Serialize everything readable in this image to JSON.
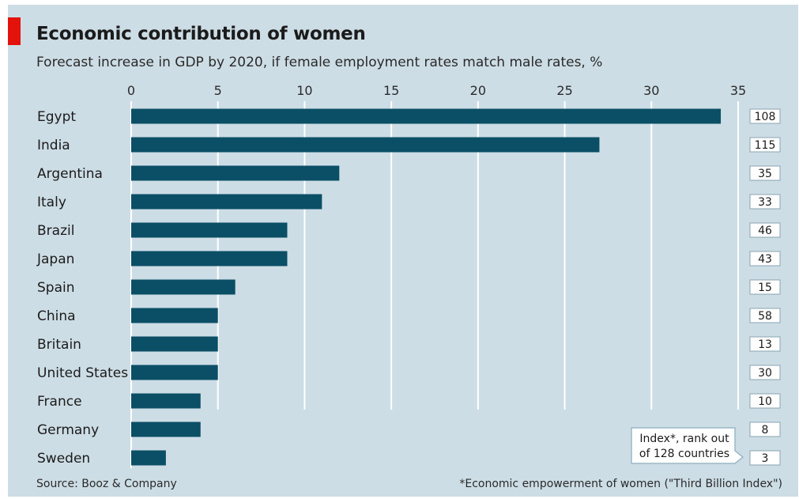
{
  "title": "Economic contribution of women",
  "subtitle": "Forecast increase in GDP by 2020, if female employment rates match male rates, %",
  "source": "Source: Booz & Company",
  "footnote": "*Economic empowerment of women (\"Third Billion Index\")",
  "rank_callout": [
    "Index*, rank out",
    "of 128 countries"
  ],
  "colors": {
    "bar": "#0b4f66",
    "background": "#cddde5",
    "accent": "#e3120b",
    "grid": "#ffffff"
  },
  "chart_data": {
    "type": "bar",
    "orientation": "horizontal",
    "categories": [
      "Egypt",
      "India",
      "Argentina",
      "Italy",
      "Brazil",
      "Japan",
      "Spain",
      "China",
      "Britain",
      "United States",
      "France",
      "Germany",
      "Sweden"
    ],
    "values": [
      34,
      27,
      12,
      11,
      9,
      9,
      6,
      5,
      5,
      5,
      4,
      4,
      2
    ],
    "index_rank": [
      108,
      115,
      35,
      33,
      46,
      43,
      15,
      58,
      13,
      30,
      10,
      8,
      3
    ],
    "xlim": [
      0,
      35
    ],
    "xticks": [
      0,
      5,
      10,
      15,
      20,
      25,
      30,
      35
    ],
    "xaxis_position": "top",
    "grid": true
  }
}
